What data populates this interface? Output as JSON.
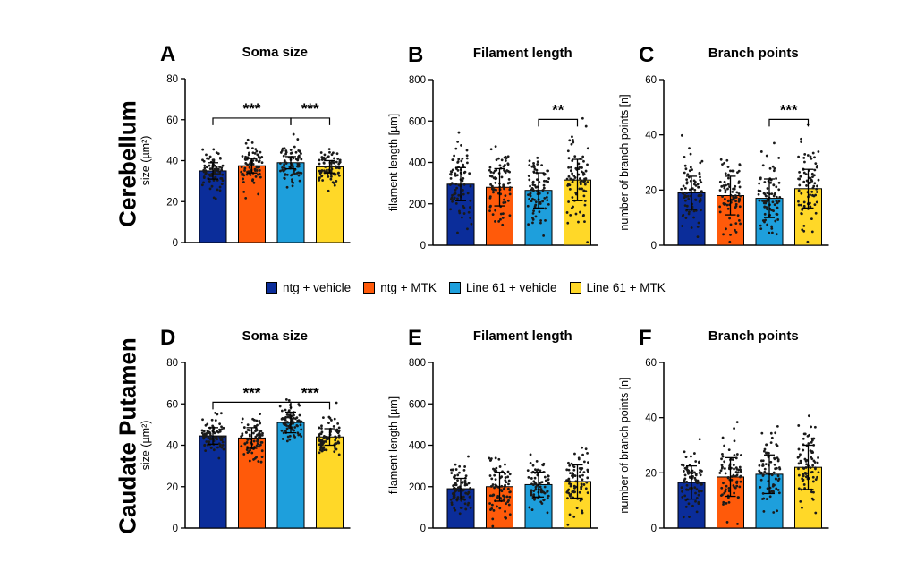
{
  "row_labels": [
    "Cerebellum",
    "Caudate Putamen"
  ],
  "legend": [
    {
      "label": "ntg + vehicle",
      "color": "#0b2d9a"
    },
    {
      "label": "ntg + MTK",
      "color": "#ff5a0a"
    },
    {
      "label": "Line 61 + vehicle",
      "color": "#1e9fdc"
    },
    {
      "label": "Line 61 + MTK",
      "color": "#ffd828"
    }
  ],
  "chart_data": [
    {
      "panel": "A",
      "type": "bar",
      "title": "Soma size",
      "ylabel": "size (µm²)",
      "ylim": [
        0,
        80
      ],
      "yticks": [
        0,
        20,
        40,
        60,
        80
      ],
      "categories": [
        "ntg + vehicle",
        "ntg + MTK",
        "Line 61 + vehicle",
        "Line 61 + MTK"
      ],
      "values": [
        35,
        37.5,
        39,
        37
      ],
      "errors": [
        4,
        3.5,
        3,
        3
      ],
      "spread": [
        5,
        5,
        5,
        4.5
      ],
      "significance": [
        {
          "from": 0,
          "to": 2,
          "label": "***"
        },
        {
          "from": 2,
          "to": 3,
          "label": "***"
        }
      ]
    },
    {
      "panel": "B",
      "type": "bar",
      "title": "Filament length",
      "ylabel": "filament length [µm]",
      "ylim": [
        0,
        800
      ],
      "yticks": [
        0,
        200,
        400,
        600,
        800
      ],
      "categories": [
        "ntg + vehicle",
        "ntg + MTK",
        "Line 61 + vehicle",
        "Line 61 + MTK"
      ],
      "values": [
        295,
        280,
        265,
        315
      ],
      "errors": [
        80,
        90,
        85,
        100
      ],
      "spread": [
        90,
        100,
        95,
        110
      ],
      "significance": [
        {
          "from": 2,
          "to": 3,
          "label": "**"
        }
      ]
    },
    {
      "panel": "C",
      "type": "bar",
      "title": "Branch points",
      "ylabel": "number of branch points [n]",
      "ylim": [
        0,
        60
      ],
      "yticks": [
        0,
        20,
        40,
        60
      ],
      "categories": [
        "ntg + vehicle",
        "ntg + MTK",
        "Line 61 + vehicle",
        "Line 61 + MTK"
      ],
      "values": [
        19,
        18,
        17,
        20.5
      ],
      "errors": [
        6,
        7,
        7,
        7
      ],
      "spread": [
        6,
        7,
        7,
        8
      ],
      "significance": [
        {
          "from": 2,
          "to": 3,
          "label": "***"
        }
      ]
    },
    {
      "panel": "D",
      "type": "bar",
      "title": "Soma size",
      "ylabel": "size (µm²)",
      "ylim": [
        0,
        80
      ],
      "yticks": [
        0,
        20,
        40,
        60,
        80
      ],
      "categories": [
        "ntg + vehicle",
        "ntg + MTK",
        "Line 61 + vehicle",
        "Line 61 + MTK"
      ],
      "values": [
        44.5,
        43.5,
        51,
        44
      ],
      "errors": [
        4,
        5,
        5,
        4
      ],
      "spread": [
        4.5,
        5,
        5,
        4.5
      ],
      "significance": [
        {
          "from": 0,
          "to": 2,
          "label": "***"
        },
        {
          "from": 2,
          "to": 3,
          "label": "***"
        }
      ]
    },
    {
      "panel": "E",
      "type": "bar",
      "title": "Filament length",
      "ylabel": "filament length [µm]",
      "ylim": [
        0,
        800
      ],
      "yticks": [
        0,
        200,
        400,
        600,
        800
      ],
      "categories": [
        "ntg + vehicle",
        "ntg + MTK",
        "Line 61 + vehicle",
        "Line 61 + MTK"
      ],
      "values": [
        190,
        200,
        210,
        225
      ],
      "errors": [
        50,
        70,
        60,
        80
      ],
      "spread": [
        55,
        75,
        65,
        80
      ],
      "significance": []
    },
    {
      "panel": "F",
      "type": "bar",
      "title": "Branch points",
      "ylabel": "number of branch points [n]",
      "ylim": [
        0,
        60
      ],
      "yticks": [
        0,
        20,
        40,
        60
      ],
      "categories": [
        "ntg + vehicle",
        "ntg + MTK",
        "Line 61 + vehicle",
        "Line 61 + MTK"
      ],
      "values": [
        16.5,
        18.5,
        19.5,
        22
      ],
      "errors": [
        6,
        7,
        7,
        8
      ],
      "spread": [
        6,
        7,
        7,
        8
      ],
      "significance": []
    }
  ]
}
